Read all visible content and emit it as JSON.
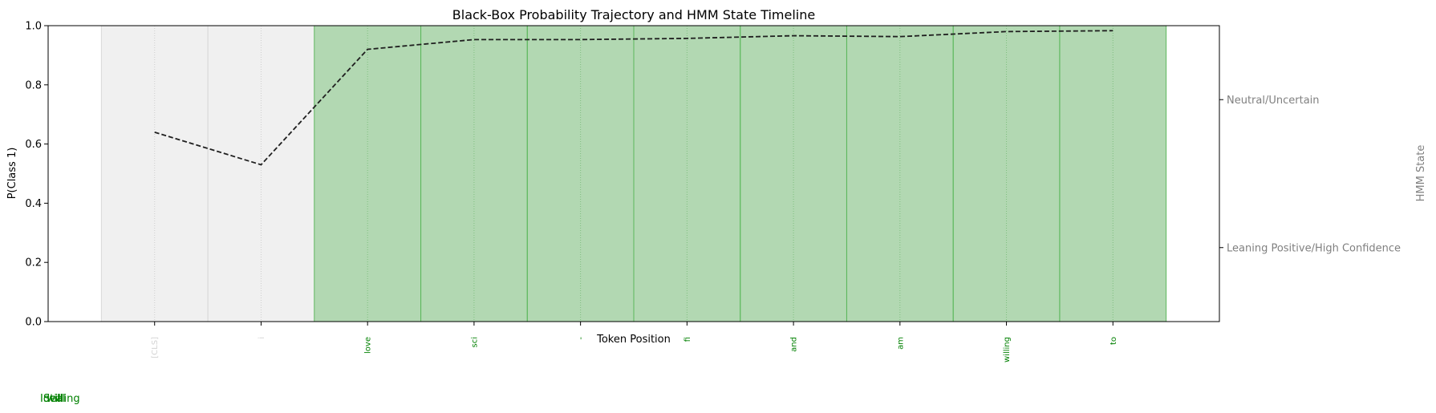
{
  "chart_data": {
    "type": "line",
    "title": "Black-Box Probability Trajectory and HMM State Timeline",
    "xlabel": "Token Position",
    "ylabel": "P(Class 1)",
    "right_ylabel": "HMM State",
    "ylim": [
      0,
      1
    ],
    "xlim": [
      -1,
      21
    ],
    "yticks": [
      "0.0",
      "0.2",
      "0.4",
      "0.6",
      "0.8",
      "1.0"
    ],
    "right_ticks": [
      "Neutral/Uncertain",
      "Leaning Positive/High Confidence"
    ],
    "tokens": [
      {
        "label": "[CLS]",
        "state": "neutral"
      },
      {
        "label": "i",
        "state": "neutral"
      },
      {
        "label": "love",
        "state": "positive"
      },
      {
        "label": "sci",
        "state": "positive"
      },
      {
        "label": "-",
        "state": "positive"
      },
      {
        "label": "fi",
        "state": "positive"
      },
      {
        "label": "and",
        "state": "positive"
      },
      {
        "label": "am",
        "state": "positive"
      },
      {
        "label": "willing",
        "state": "positive"
      },
      {
        "label": "to",
        "state": "positive"
      }
    ],
    "series": [
      {
        "x": [
          1,
          3,
          5,
          7,
          9,
          11,
          13,
          15,
          17,
          19
        ],
        "values": [
          0.64,
          0.53,
          0.92,
          0.953,
          0.953,
          0.957,
          0.966,
          0.963,
          0.98,
          0.983
        ]
      }
    ],
    "state_colors": {
      "neutral": "#f0f0f0",
      "positive": "#b2d8b2"
    },
    "state_edge_colors": {
      "neutral": "#d9d9d9",
      "positive": "#5cb85c"
    },
    "token_colors": {
      "neutral": "#d3d3d3",
      "positive": "#008000"
    },
    "line_color": "#1f1f1f",
    "grid": false,
    "stray_labels": [
      "Ideal",
      "Still",
      "willing"
    ]
  }
}
